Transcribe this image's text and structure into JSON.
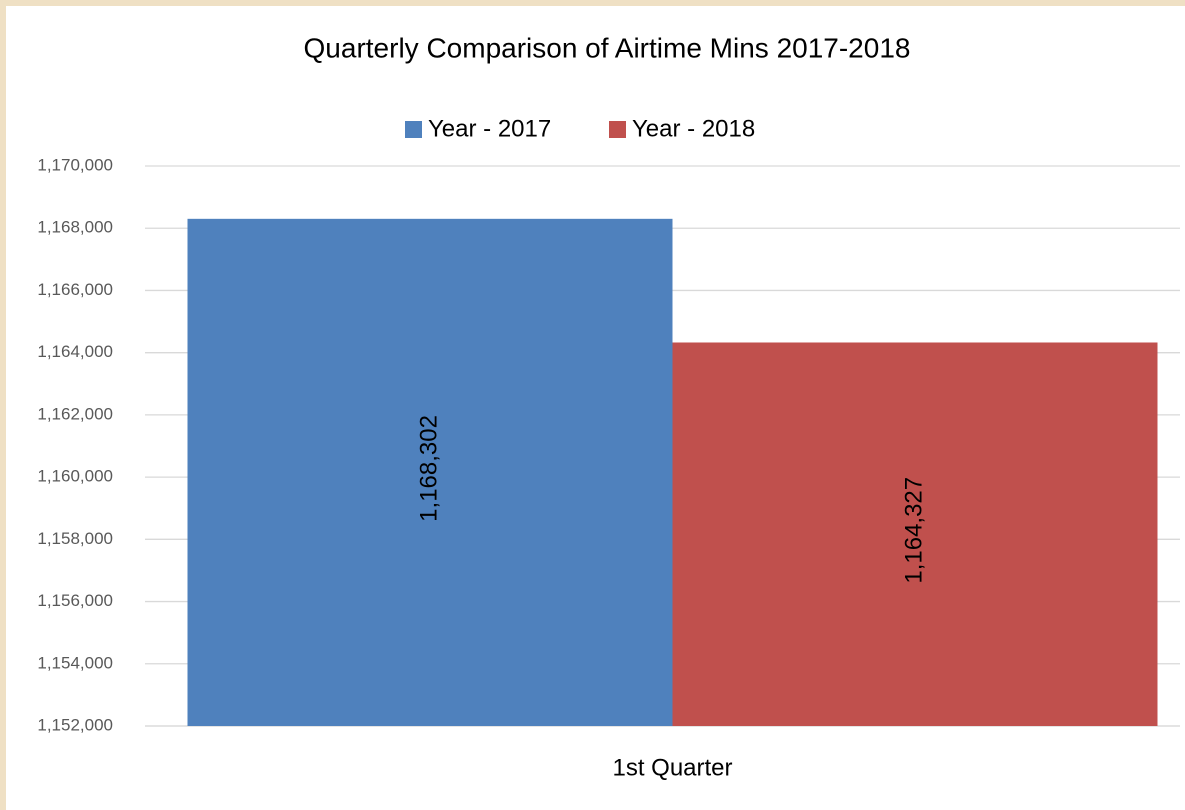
{
  "chart_data": {
    "type": "bar",
    "title": "Quarterly Comparison of Airtime Mins 2017-2018",
    "categories": [
      "1st Quarter"
    ],
    "series": [
      {
        "name": "Year - 2017",
        "color": "#4f81bd",
        "values": [
          1168302
        ],
        "value_labels": [
          "1,168,302"
        ]
      },
      {
        "name": "Year - 2018",
        "color": "#c0504d",
        "values": [
          1164327
        ],
        "value_labels": [
          "1,164,327"
        ]
      }
    ],
    "ylim": [
      1152000,
      1170000
    ],
    "yticks": [
      {
        "value": 1152000,
        "label": "1,152,000"
      },
      {
        "value": 1154000,
        "label": "1,154,000"
      },
      {
        "value": 1156000,
        "label": "1,156,000"
      },
      {
        "value": 1158000,
        "label": "1,158,000"
      },
      {
        "value": 1160000,
        "label": "1,160,000"
      },
      {
        "value": 1162000,
        "label": "1,162,000"
      },
      {
        "value": 1164000,
        "label": "1,164,000"
      },
      {
        "value": 1166000,
        "label": "1,166,000"
      },
      {
        "value": 1168000,
        "label": "1,168,000"
      },
      {
        "value": 1170000,
        "label": "1,170,000"
      }
    ],
    "grid": true,
    "legend": "top"
  }
}
